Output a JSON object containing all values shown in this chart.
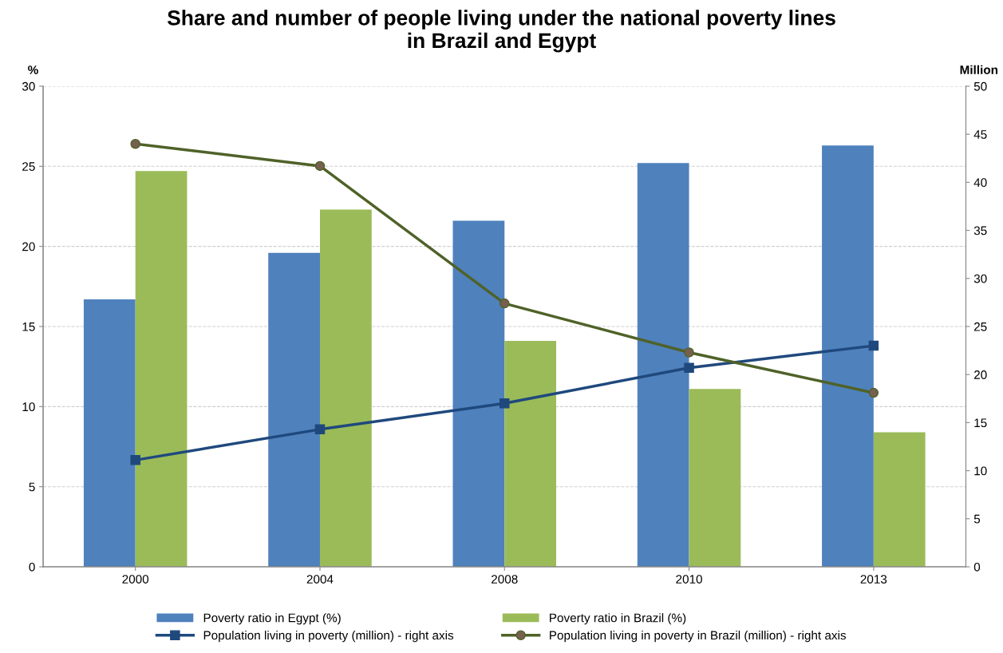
{
  "chart_data": {
    "type": "bar",
    "title": "Share and number of people living under the national poverty lines\nin Brazil and Egypt",
    "ylabel": "%",
    "y2label": "Million",
    "categories": [
      "2000",
      "2004",
      "2008",
      "2010",
      "2013"
    ],
    "series": [
      {
        "name": "Poverty ratio in Egypt (%)",
        "color": "#4f81bd",
        "values": [
          16.7,
          19.6,
          21.6,
          25.2,
          26.3
        ]
      },
      {
        "name": "Poverty ratio in Brazil (%)",
        "color": "#9bbb59",
        "values": [
          24.7,
          22.3,
          14.1,
          11.1,
          8.4
        ]
      },
      {
        "name": "Population living in poverty (million) - right axis",
        "type": "line",
        "axis": "y2",
        "marker": "square",
        "color": "#1f497d",
        "values": [
          11.1,
          14.3,
          17.0,
          20.7,
          23.0
        ]
      },
      {
        "name": "Population living in poverty in Brazil (million) - right axis",
        "type": "line",
        "axis": "y2",
        "marker": "circle",
        "color": "#4f6228",
        "values": [
          44.0,
          41.7,
          27.4,
          22.3,
          18.1
        ]
      }
    ],
    "ylim": [
      0,
      30
    ],
    "yticks": [
      0,
      5,
      10,
      15,
      20,
      25,
      30
    ],
    "y2lim": [
      0,
      50
    ],
    "y2ticks": [
      0,
      5,
      10,
      15,
      20,
      25,
      30,
      35,
      40,
      45,
      50
    ],
    "grid": "y",
    "legend": "bottom"
  }
}
